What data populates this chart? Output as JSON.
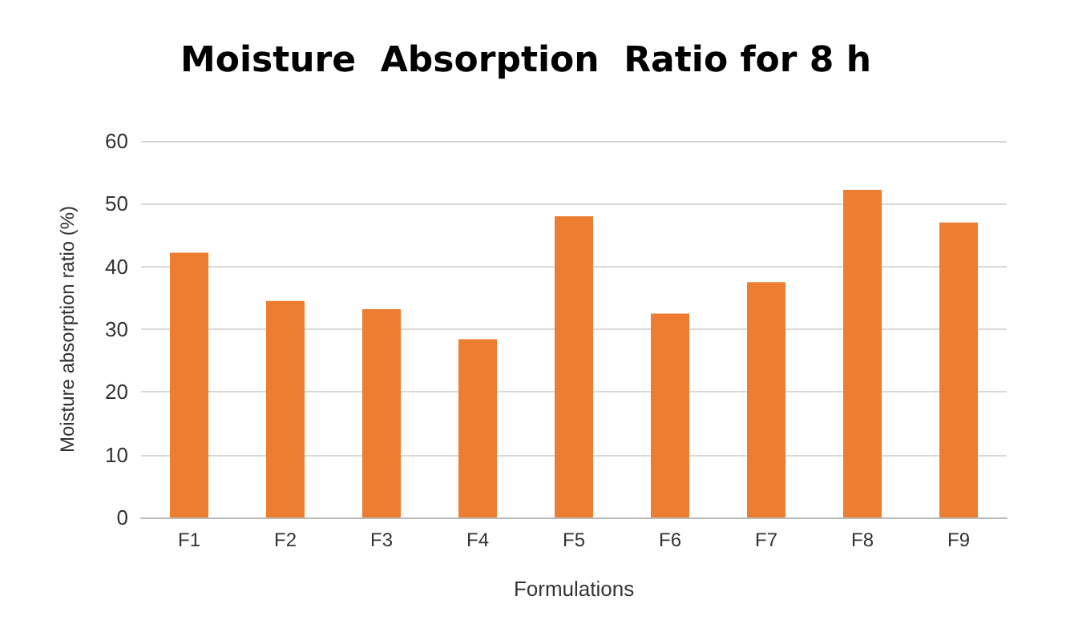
{
  "chart_data": {
    "type": "bar",
    "title": "Moisture  Absorption  Ratio for 8 h",
    "xlabel": "Formulations",
    "ylabel": "Moisture absorption ratio (%)",
    "categories": [
      "F1",
      "F2",
      "F3",
      "F4",
      "F5",
      "F6",
      "F7",
      "F8",
      "F9"
    ],
    "values": [
      42.2,
      34.5,
      33.2,
      28.4,
      48,
      32.5,
      37.5,
      52.2,
      47
    ],
    "color": "#ed7d31",
    "ylim": [
      0,
      60
    ],
    "yticks": [
      0,
      10,
      20,
      30,
      40,
      50,
      60
    ],
    "grid": "y"
  }
}
